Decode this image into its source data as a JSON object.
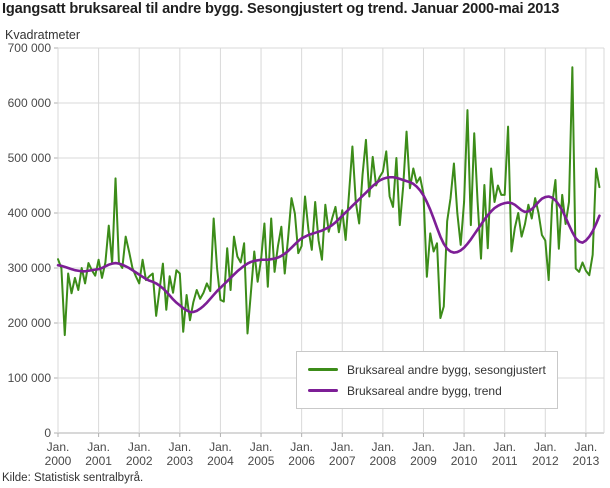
{
  "title": "Igangsatt bruksareal til andre bygg. Sesongjustert og trend. Januar 2000-mai 2013",
  "subtitle": "Kvadratmeter",
  "source": "Kilde: Statistisk sentralbyrå.",
  "colors": {
    "seasonal": "#3c8c19",
    "trend": "#7d1e96",
    "grid": "#d9d9d9",
    "axis": "#b0b0b0",
    "tick_text": "#4a4a4a"
  },
  "chart_data": {
    "type": "line",
    "title": "Igangsatt bruksareal til andre bygg. Sesongjustert og trend. Januar 2000-mai 2013",
    "ylabel": "Kvadratmeter",
    "xlabel": "",
    "ylim": [
      0,
      700000
    ],
    "grid": true,
    "legend_position": "bottom-center-box",
    "x_start": "Jan. 2000",
    "x_end": "mai 2013",
    "y_ticks": [
      "0",
      "100 000",
      "200 000",
      "300 000",
      "400 000",
      "500 000",
      "600 000",
      "700 000"
    ],
    "x_ticks": [
      {
        "line1": "Jan.",
        "line2": "2000"
      },
      {
        "line1": "Jan.",
        "line2": "2001"
      },
      {
        "line1": "Jan.",
        "line2": "2002"
      },
      {
        "line1": "Jan.",
        "line2": "2003"
      },
      {
        "line1": "Jan.",
        "line2": "2004"
      },
      {
        "line1": "Jan.",
        "line2": "2005"
      },
      {
        "line1": "Jan.",
        "line2": "2006"
      },
      {
        "line1": "Jan.",
        "line2": "2007"
      },
      {
        "line1": "Jan.",
        "line2": "2008"
      },
      {
        "line1": "Jan.",
        "line2": "2009"
      },
      {
        "line1": "Jan.",
        "line2": "2010"
      },
      {
        "line1": "Jan.",
        "line2": "2011"
      },
      {
        "line1": "Jan.",
        "line2": "2012"
      },
      {
        "line1": "Jan.",
        "line2": "2013"
      }
    ],
    "series": [
      {
        "name": "Bruksareal andre bygg, sesongjustert",
        "color": "#3c8c19",
        "values": [
          316000,
          300000,
          178000,
          290000,
          254000,
          282000,
          260000,
          300000,
          272000,
          309000,
          296000,
          286000,
          315000,
          282000,
          310000,
          377000,
          308000,
          463000,
          310000,
          300000,
          357000,
          330000,
          300000,
          285000,
          272000,
          315000,
          278000,
          285000,
          290000,
          213000,
          260000,
          308000,
          224000,
          285000,
          255000,
          296000,
          290000,
          184000,
          251000,
          205000,
          238000,
          260000,
          244000,
          255000,
          272000,
          258000,
          390000,
          300000,
          242000,
          239000,
          336000,
          260000,
          357000,
          321000,
          310000,
          345000,
          181000,
          255000,
          330000,
          275000,
          315000,
          381000,
          266000,
          390000,
          293000,
          340000,
          375000,
          290000,
          355000,
          427000,
          399000,
          327000,
          340000,
          430000,
          370000,
          333000,
          420000,
          350000,
          315000,
          415000,
          366000,
          390000,
          411000,
          365000,
          405000,
          351000,
          435000,
          521000,
          420000,
          381000,
          470000,
          533000,
          430000,
          502000,
          450000,
          465000,
          475000,
          512000,
          430000,
          411000,
          500000,
          378000,
          448000,
          548000,
          445000,
          481000,
          455000,
          465000,
          435000,
          284000,
          363000,
          330000,
          345000,
          209000,
          230000,
          385000,
          427000,
          490000,
          400000,
          342000,
          420000,
          587000,
          378000,
          545000,
          420000,
          317000,
          451000,
          336000,
          481000,
          420000,
          450000,
          433000,
          433000,
          557000,
          330000,
          373000,
          400000,
          357000,
          380000,
          415000,
          390000,
          427000,
          400000,
          360000,
          350000,
          278000,
          415000,
          460000,
          335000,
          433000,
          380000,
          420000,
          665000,
          299000,
          293000,
          310000,
          295000,
          287000,
          324000,
          481000,
          447000
        ]
      },
      {
        "name": "Bruksareal andre bygg, trend",
        "color": "#7d1e96",
        "values": [
          305000,
          304000,
          302000,
          300000,
          298000,
          296000,
          295000,
          294000,
          294000,
          295000,
          296000,
          297000,
          298000,
          300000,
          303000,
          306000,
          308000,
          309000,
          308000,
          306000,
          303000,
          300000,
          296000,
          292000,
          288000,
          284000,
          280000,
          277000,
          275000,
          272000,
          268000,
          263000,
          257000,
          250000,
          243000,
          237000,
          232000,
          227000,
          223000,
          220000,
          220000,
          222000,
          226000,
          231000,
          237000,
          244000,
          251000,
          258000,
          264000,
          270000,
          276000,
          282000,
          288000,
          294000,
          299000,
          304000,
          308000,
          311000,
          313000,
          314000,
          315000,
          315000,
          315000,
          316000,
          317000,
          319000,
          322000,
          326000,
          331000,
          337000,
          343000,
          349000,
          354000,
          357000,
          360000,
          362000,
          364000,
          366000,
          368000,
          371000,
          374000,
          378000,
          383000,
          389000,
          395000,
          401000,
          407000,
          413000,
          419000,
          425000,
          431000,
          437000,
          443000,
          449000,
          454000,
          459000,
          462000,
          464000,
          465000,
          465000,
          464000,
          462000,
          460000,
          458000,
          456000,
          453000,
          448000,
          441000,
          432000,
          420000,
          406000,
          390000,
          373000,
          357000,
          344000,
          335000,
          330000,
          328000,
          329000,
          332000,
          337000,
          344000,
          352000,
          361000,
          370000,
          379000,
          388000,
          396000,
          403000,
          409000,
          413000,
          416000,
          418000,
          419000,
          418000,
          415000,
          410000,
          405000,
          402000,
          403000,
          407000,
          413000,
          420000,
          426000,
          429000,
          430000,
          428000,
          423000,
          415000,
          405000,
          392000,
          378000,
          365000,
          354000,
          348000,
          346000,
          350000,
          357000,
          367000,
          380000,
          395000
        ]
      }
    ]
  }
}
